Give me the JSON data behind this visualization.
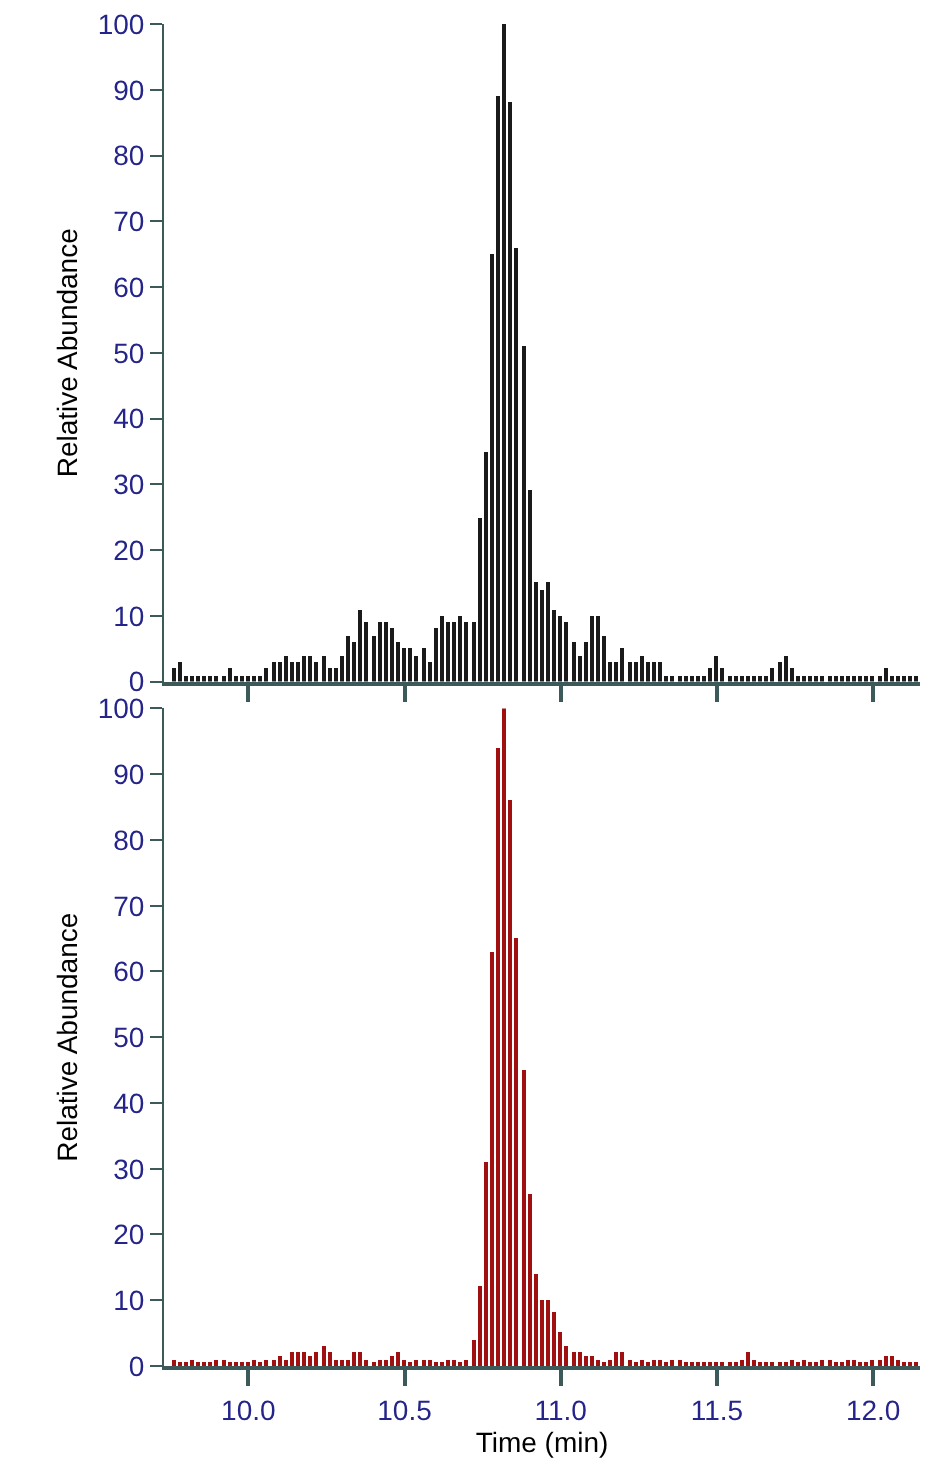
{
  "chart_data": [
    {
      "type": "bar",
      "ylabel": "Relative Abundance",
      "tick_labels": "y",
      "xlim": [
        9.73,
        12.15
      ],
      "xticks": [
        10.0,
        10.5,
        11.0,
        11.5,
        12.0
      ],
      "ylim": [
        0,
        100
      ],
      "yticks": [
        0,
        10,
        20,
        30,
        40,
        50,
        60,
        70,
        80,
        90,
        100
      ],
      "x": [
        9.76,
        9.78,
        9.8,
        9.82,
        9.84,
        9.86,
        9.88,
        9.9,
        9.92,
        9.94,
        9.96,
        9.98,
        10.0,
        10.02,
        10.04,
        10.06,
        10.08,
        10.1,
        10.12,
        10.14,
        10.16,
        10.18,
        10.2,
        10.22,
        10.24,
        10.26,
        10.28,
        10.3,
        10.32,
        10.34,
        10.36,
        10.38,
        10.4,
        10.42,
        10.44,
        10.46,
        10.48,
        10.5,
        10.52,
        10.54,
        10.56,
        10.58,
        10.6,
        10.62,
        10.64,
        10.66,
        10.68,
        10.7,
        10.72,
        10.74,
        10.76,
        10.78,
        10.8,
        10.82,
        10.84,
        10.86,
        10.88,
        10.9,
        10.92,
        10.94,
        10.96,
        10.98,
        11.0,
        11.02,
        11.04,
        11.06,
        11.08,
        11.1,
        11.12,
        11.14,
        11.16,
        11.18,
        11.2,
        11.22,
        11.24,
        11.26,
        11.28,
        11.3,
        11.32,
        11.34,
        11.36,
        11.38,
        11.4,
        11.42,
        11.44,
        11.46,
        11.48,
        11.5,
        11.52,
        11.54,
        11.56,
        11.58,
        11.6,
        11.62,
        11.64,
        11.66,
        11.68,
        11.7,
        11.72,
        11.74,
        11.76,
        11.78,
        11.8,
        11.82,
        11.84,
        11.86,
        11.88,
        11.9,
        11.92,
        11.94,
        11.96,
        11.98,
        12.0,
        12.02,
        12.04,
        12.06,
        12.08,
        12.1,
        12.12,
        12.14
      ],
      "series": [
        {
          "color": "#1a1a1a",
          "values": [
            2,
            3,
            1,
            1,
            1,
            1,
            1,
            1,
            1,
            2,
            1,
            1,
            1,
            1,
            1,
            2,
            3,
            3,
            4,
            3,
            3,
            4,
            4,
            3,
            4,
            2,
            2,
            4,
            7,
            6,
            11,
            9,
            7,
            9,
            9,
            8,
            6,
            5,
            5,
            4,
            5,
            3,
            8,
            10,
            9,
            9,
            10,
            9,
            9,
            25,
            35,
            65,
            89,
            100,
            88,
            66,
            51,
            29,
            15,
            14,
            15,
            11,
            10,
            9,
            6,
            4,
            6,
            10,
            10,
            7,
            3,
            3,
            5,
            3,
            3,
            4,
            3,
            3,
            3,
            1,
            1,
            1,
            1,
            1,
            1,
            1,
            2,
            4,
            2,
            1,
            1,
            1,
            1,
            1,
            1,
            1,
            2,
            3,
            4,
            2,
            1,
            1,
            1,
            1,
            1,
            1,
            1,
            1,
            1,
            1,
            1,
            1,
            1,
            1,
            2,
            1,
            1,
            1,
            1,
            1
          ]
        }
      ]
    },
    {
      "type": "bar",
      "xlabel": "Time (min)",
      "ylabel": "Relative Abundance",
      "xlim": [
        9.73,
        12.15
      ],
      "xticks": [
        {
          "value": 10.0,
          "label": "10.0"
        },
        {
          "value": 10.5,
          "label": "10.5"
        },
        {
          "value": 11.0,
          "label": "11.0"
        },
        {
          "value": 11.5,
          "label": "11.5"
        },
        {
          "value": 12.0,
          "label": "12.0"
        }
      ],
      "ylim": [
        0,
        100
      ],
      "yticks": [
        0,
        10,
        20,
        30,
        40,
        50,
        60,
        70,
        80,
        90,
        100
      ],
      "x": [
        9.76,
        9.78,
        9.8,
        9.82,
        9.84,
        9.86,
        9.88,
        9.9,
        9.92,
        9.94,
        9.96,
        9.98,
        10.0,
        10.02,
        10.04,
        10.06,
        10.08,
        10.1,
        10.12,
        10.14,
        10.16,
        10.18,
        10.2,
        10.22,
        10.24,
        10.26,
        10.28,
        10.3,
        10.32,
        10.34,
        10.36,
        10.38,
        10.4,
        10.42,
        10.44,
        10.46,
        10.48,
        10.5,
        10.52,
        10.54,
        10.56,
        10.58,
        10.6,
        10.62,
        10.64,
        10.66,
        10.68,
        10.7,
        10.72,
        10.74,
        10.76,
        10.78,
        10.8,
        10.82,
        10.84,
        10.86,
        10.88,
        10.9,
        10.92,
        10.94,
        10.96,
        10.98,
        11.0,
        11.02,
        11.04,
        11.06,
        11.08,
        11.1,
        11.12,
        11.14,
        11.16,
        11.18,
        11.2,
        11.22,
        11.24,
        11.26,
        11.28,
        11.3,
        11.32,
        11.34,
        11.36,
        11.38,
        11.4,
        11.42,
        11.44,
        11.46,
        11.48,
        11.5,
        11.52,
        11.54,
        11.56,
        11.58,
        11.6,
        11.62,
        11.64,
        11.66,
        11.68,
        11.7,
        11.72,
        11.74,
        11.76,
        11.78,
        11.8,
        11.82,
        11.84,
        11.86,
        11.88,
        11.9,
        11.92,
        11.94,
        11.96,
        11.98,
        12.0,
        12.02,
        12.04,
        12.06,
        12.08,
        12.1,
        12.12,
        12.14
      ],
      "series": [
        {
          "color": "#a01010",
          "values": [
            1,
            0.5,
            0.5,
            1,
            0.5,
            0.5,
            0.5,
            1,
            1,
            0.5,
            0.5,
            0.5,
            0.5,
            1,
            0.5,
            1,
            1,
            1.5,
            1,
            2,
            2,
            2,
            1.5,
            2,
            3,
            2,
            1,
            1,
            1,
            2,
            2,
            1,
            0.5,
            1,
            1,
            1.5,
            2,
            1,
            0.5,
            1,
            1,
            1,
            0.5,
            0.5,
            1,
            1,
            0.5,
            1,
            4,
            12,
            31,
            63,
            94,
            100,
            86,
            65,
            45,
            26,
            14,
            10,
            10,
            8,
            5,
            3,
            2,
            2,
            1.5,
            1.5,
            1,
            0.5,
            1,
            2,
            2,
            1,
            0.5,
            1,
            0.5,
            1,
            1,
            0.5,
            1,
            1,
            0.5,
            0.5,
            0.5,
            0.5,
            0.5,
            0.5,
            0.5,
            0.5,
            0.5,
            1,
            2,
            1,
            0.5,
            0.5,
            0.5,
            0.5,
            0.5,
            1,
            0.5,
            1,
            0.5,
            0.5,
            1,
            1,
            0.5,
            0.5,
            1,
            1,
            0.5,
            0.5,
            1,
            1,
            1.5,
            1.5,
            1,
            0.5,
            0.5,
            0.5
          ]
        }
      ]
    }
  ]
}
